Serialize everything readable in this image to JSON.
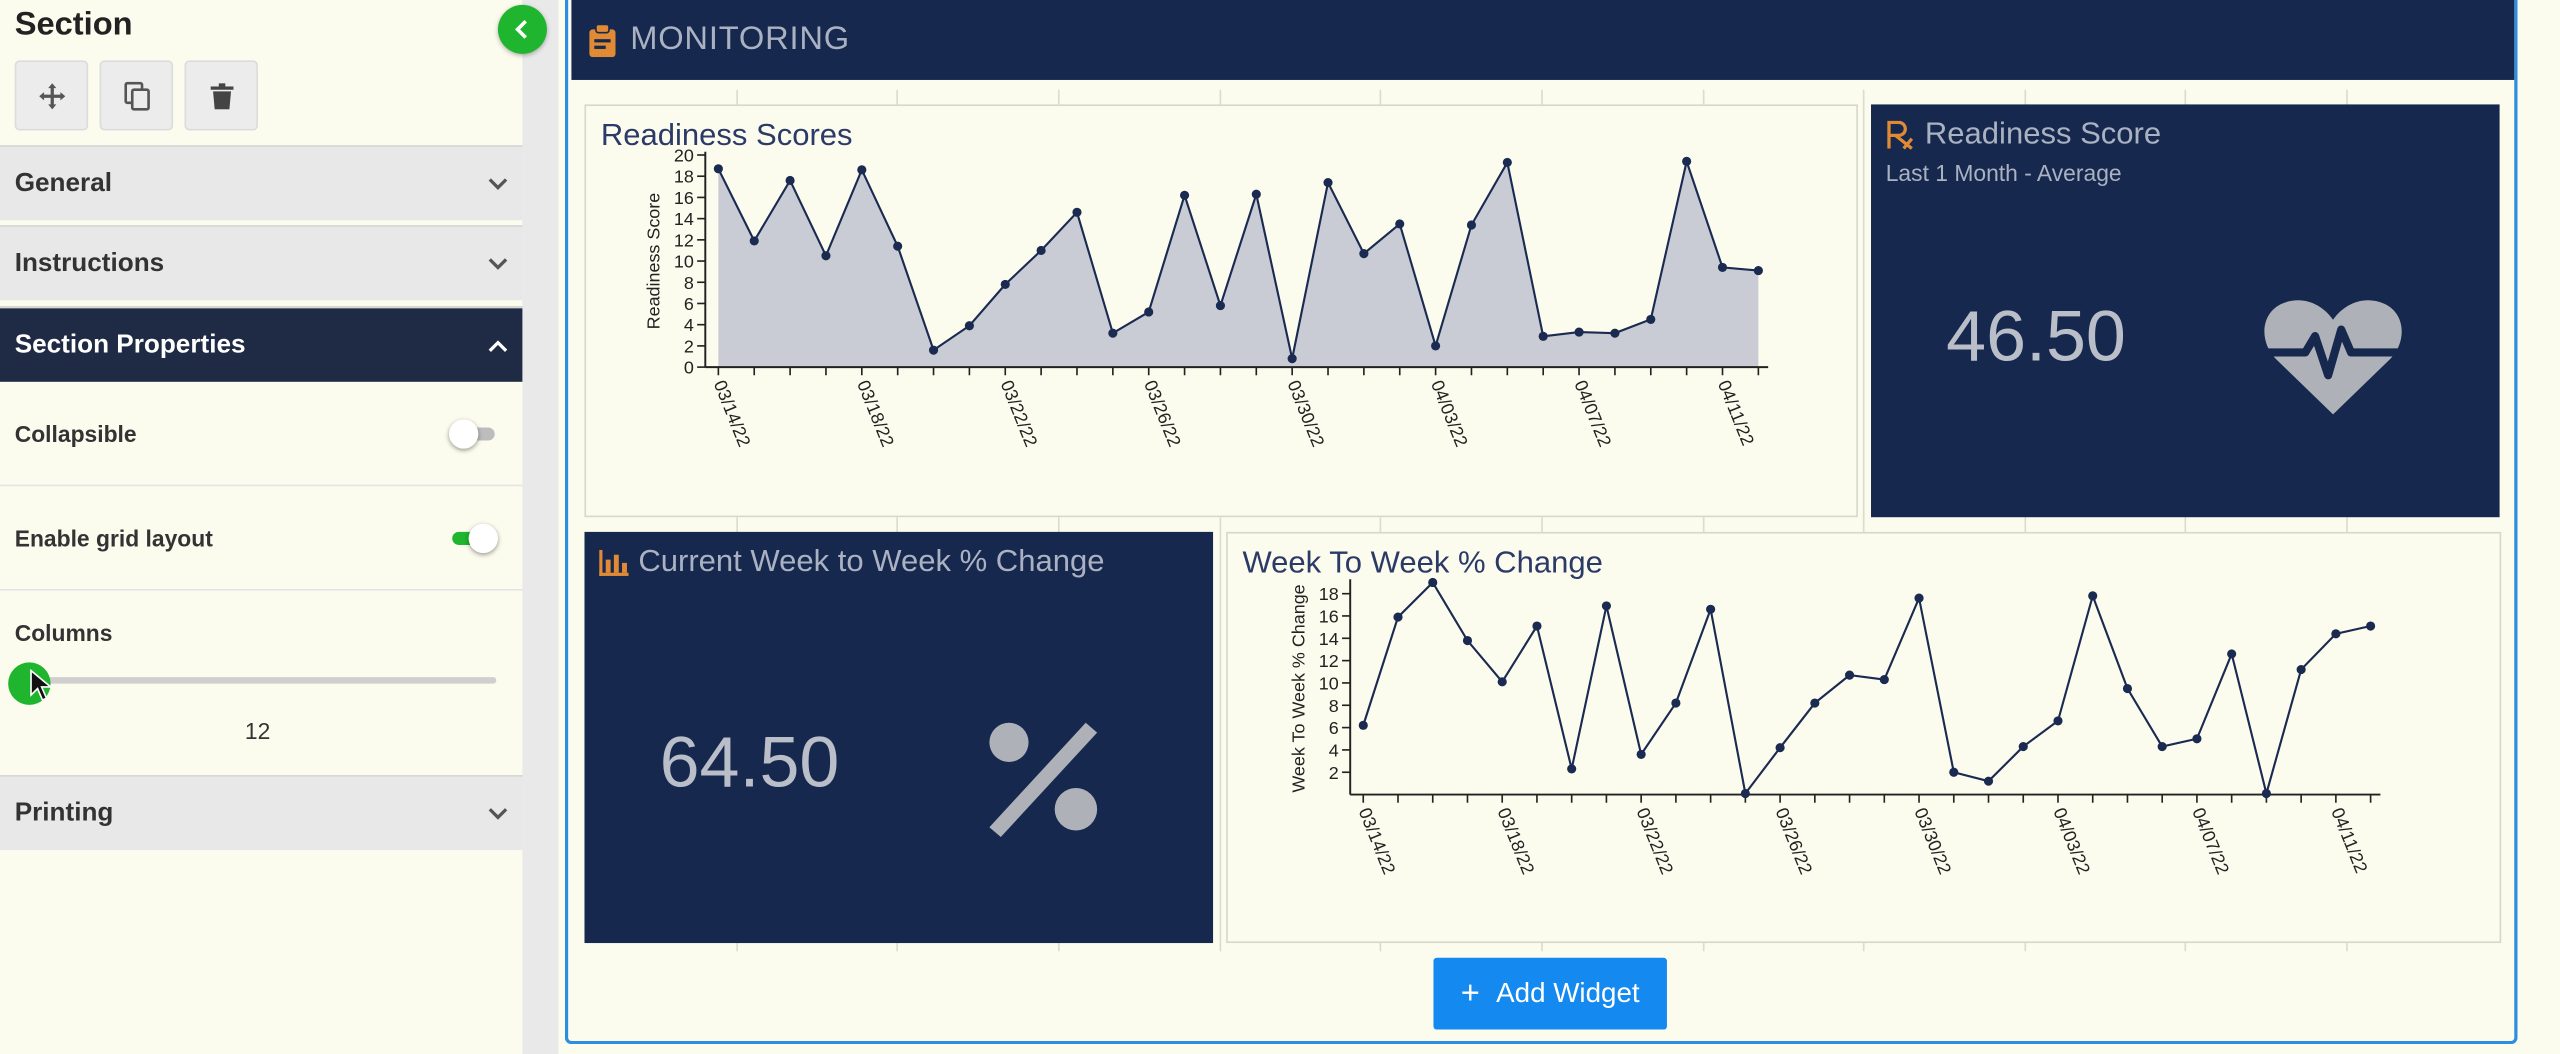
{
  "sidebar": {
    "title": "Section",
    "tools": [
      {
        "name": "move",
        "icon": "move-icon"
      },
      {
        "name": "copy",
        "icon": "copy-icon"
      },
      {
        "name": "delete",
        "icon": "trash-icon"
      }
    ],
    "sections": {
      "general": "General",
      "instructions": "Instructions",
      "section_properties": "Section Properties",
      "printing": "Printing"
    },
    "properties": {
      "collapsible_label": "Collapsible",
      "collapsible_on": false,
      "grid_label": "Enable grid layout",
      "grid_on": true,
      "columns_label": "Columns",
      "columns_value": "12"
    },
    "accent": "#1fb52e"
  },
  "main": {
    "header_title": "MONITORING",
    "header_icon": "clipboard-icon",
    "add_widget_label": "Add Widget",
    "colors": {
      "navy": "#17284e",
      "button": "#1489f0",
      "icon_orange": "#e08a35"
    }
  },
  "widgets": {
    "readiness_scores": {
      "title": "Readiness Scores"
    },
    "readiness_score": {
      "title": "Readiness Score",
      "subtitle": "Last 1 Month - Average",
      "value": "46.50",
      "icon": "heart-pulse-icon",
      "title_icon": "rx-icon"
    },
    "current_week": {
      "title": "Current Week to Week % Change",
      "value": "64.50",
      "icon": "percent-icon",
      "title_icon": "bar-chart-icon"
    },
    "week_to_week": {
      "title": "Week To Week % Change"
    }
  },
  "chart_data": [
    {
      "type": "area",
      "title": "Readiness Scores",
      "xlabel": "",
      "ylabel": "Readiness Score",
      "ylim": [
        0,
        20
      ],
      "yticks": [
        0,
        2,
        4,
        6,
        8,
        10,
        12,
        14,
        16,
        18,
        20
      ],
      "x_tick_labels": [
        "03/14/22",
        "03/18/22",
        "03/22/22",
        "03/26/22",
        "03/30/22",
        "04/03/22",
        "04/07/22",
        "04/11/22"
      ],
      "x_tick_every": 4,
      "x_start": "03/14/22",
      "values": [
        18.7,
        11.9,
        17.6,
        10.5,
        18.6,
        11.4,
        1.6,
        3.9,
        7.8,
        11.0,
        14.6,
        3.2,
        5.2,
        16.2,
        5.8,
        16.3,
        0.8,
        17.4,
        10.7,
        13.5,
        2.0,
        13.4,
        19.3,
        2.9,
        3.3,
        3.2,
        4.5,
        19.4,
        9.4,
        9.1
      ],
      "grid": false
    },
    {
      "type": "line",
      "title": "Week To Week % Change",
      "xlabel": "",
      "ylabel": "Week To Week % Change",
      "ylim": [
        0,
        19
      ],
      "yticks": [
        2,
        4,
        6,
        8,
        10,
        12,
        14,
        16,
        18
      ],
      "x_tick_labels": [
        "03/14/22",
        "03/18/22",
        "03/22/22",
        "03/26/22",
        "03/30/22",
        "04/03/22",
        "04/07/22",
        "04/11/22"
      ],
      "x_tick_every": 4,
      "x_start": "03/14/22",
      "values": [
        6.2,
        15.9,
        19.0,
        13.8,
        10.1,
        15.1,
        2.3,
        16.9,
        3.6,
        8.2,
        16.6,
        0.1,
        4.2,
        8.2,
        10.7,
        10.3,
        17.6,
        2.0,
        1.2,
        4.3,
        6.6,
        17.8,
        9.5,
        4.3,
        5.0,
        12.6,
        0.1,
        11.2,
        14.4,
        15.1
      ],
      "grid": false
    }
  ]
}
